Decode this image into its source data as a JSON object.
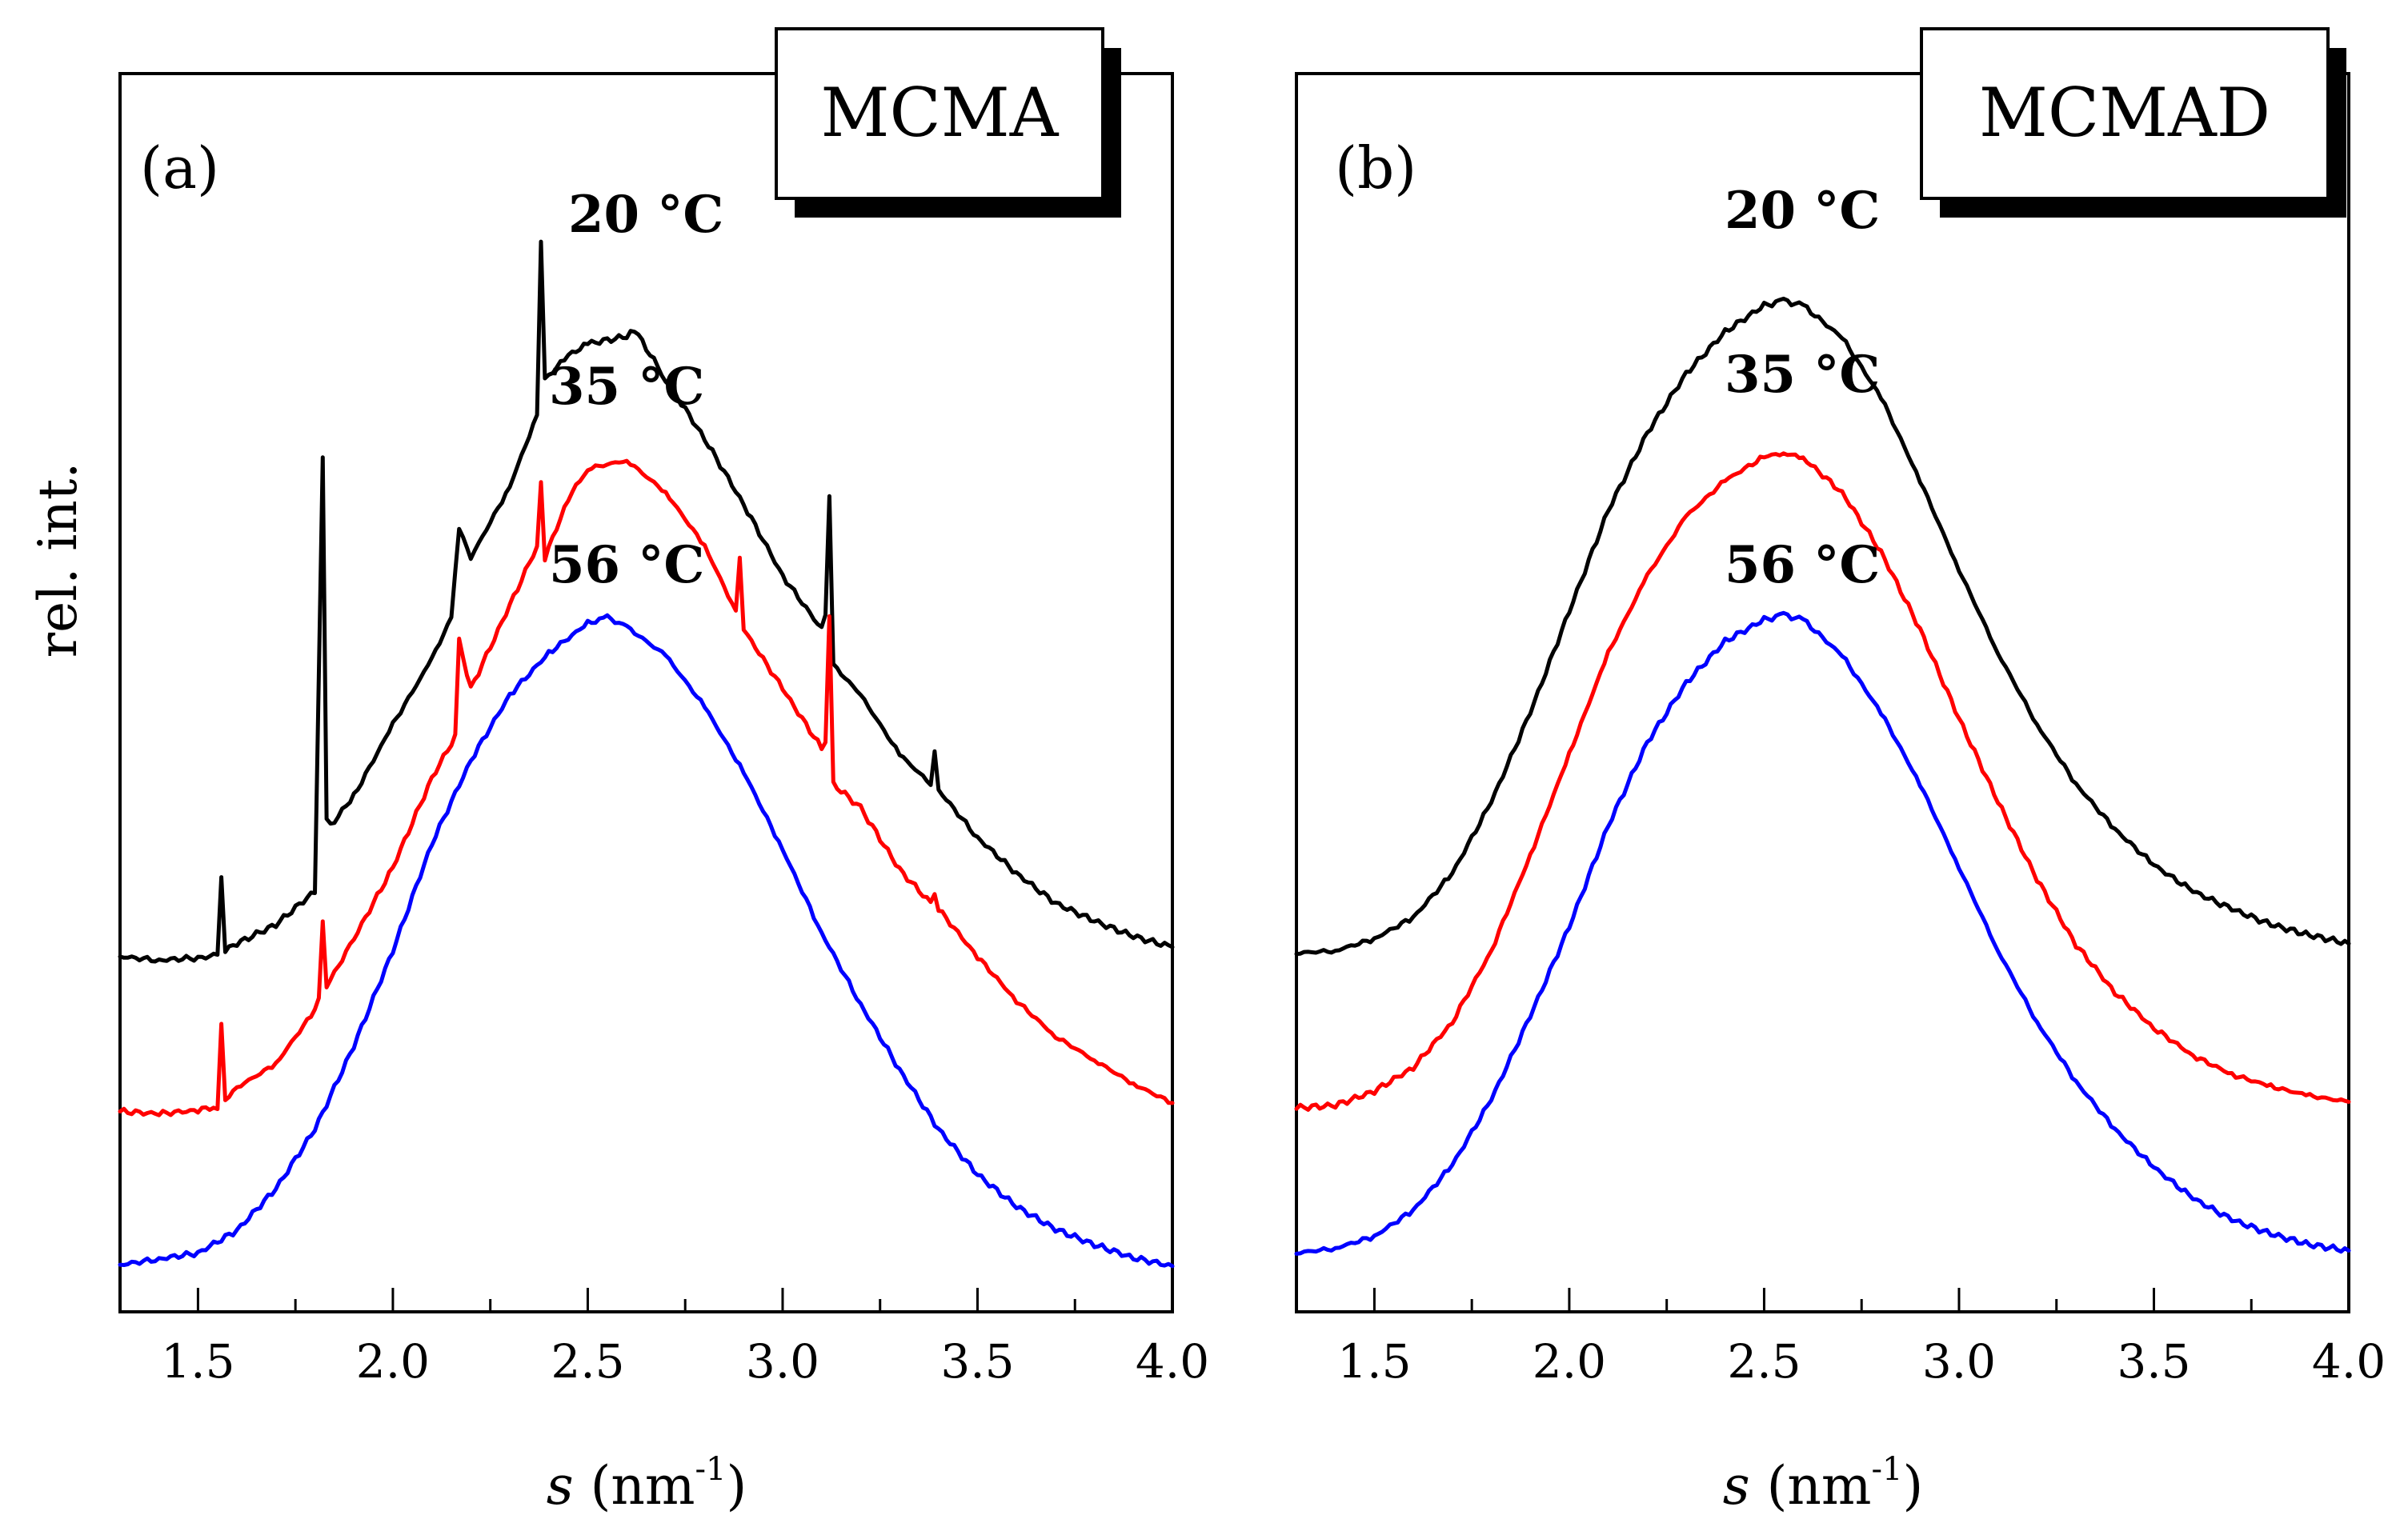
{
  "figure": {
    "ylabel": "rel. int.",
    "xlabel_var": "s",
    "xlabel_unit": " (nm",
    "xlabel_exp": "-1",
    "xlabel_close": ")"
  },
  "colors": {
    "t20": "#000000",
    "t35": "#ff0000",
    "t56": "#0000ff"
  },
  "chart_data": [
    {
      "type": "line",
      "panel_label": "(a)",
      "title": "MCMA",
      "xlabel": "s (nm-1)",
      "ylabel": "rel. int.",
      "xlim": [
        1.3,
        4.0
      ],
      "ylim": [
        0,
        100
      ],
      "x_ticks": [
        "1.5",
        "2.0",
        "2.5",
        "3.0",
        "3.5",
        "4.0"
      ],
      "series": [
        {
          "name": "20 °C",
          "color": "#000000",
          "x": [
            1.3,
            1.4,
            1.5,
            1.55,
            1.56,
            1.57,
            1.6,
            1.7,
            1.8,
            1.82,
            1.83,
            1.84,
            1.9,
            2.0,
            2.1,
            2.15,
            2.17,
            2.2,
            2.3,
            2.37,
            2.38,
            2.39,
            2.45,
            2.5,
            2.6,
            2.62,
            2.7,
            2.8,
            2.9,
            3.0,
            3.1,
            3.11,
            3.12,
            3.13,
            3.2,
            3.3,
            3.38,
            3.39,
            3.4,
            3.5,
            3.6,
            3.7,
            3.8,
            3.9,
            4.0
          ],
          "y": [
            28.5,
            28.2,
            28.4,
            28.6,
            35.2,
            29,
            29.6,
            31.2,
            34,
            70.5,
            40,
            39.5,
            42,
            48,
            53.5,
            57,
            64.5,
            62,
            68,
            74,
            88.5,
            77,
            79,
            80,
            80.6,
            81.2,
            77,
            72,
            66.5,
            60.5,
            56,
            57,
            67,
            53,
            50.5,
            45.5,
            43,
            45.8,
            42.5,
            38.5,
            35.5,
            33,
            31.5,
            30.2,
            29.3
          ]
        },
        {
          "name": "35 °C",
          "color": "#ff0000",
          "x": [
            1.3,
            1.4,
            1.5,
            1.55,
            1.56,
            1.57,
            1.6,
            1.7,
            1.8,
            1.81,
            1.82,
            1.83,
            1.9,
            2.0,
            2.1,
            2.16,
            2.17,
            2.2,
            2.3,
            2.37,
            2.38,
            2.39,
            2.45,
            2.5,
            2.6,
            2.7,
            2.8,
            2.88,
            2.89,
            2.9,
            3.0,
            3.1,
            3.11,
            3.12,
            3.13,
            3.2,
            3.3,
            3.38,
            3.39,
            3.4,
            3.5,
            3.6,
            3.7,
            3.8,
            3.9,
            4.0
          ],
          "y": [
            15.5,
            15.3,
            15.6,
            15.9,
            23,
            16.5,
            17.5,
            19.5,
            24,
            25,
            31.5,
            26,
            30,
            36,
            43.5,
            47,
            55,
            51,
            58,
            63,
            68.5,
            62,
            67,
            69.5,
            70.2,
            67.5,
            63,
            57.5,
            62,
            56,
            51,
            46,
            46.5,
            57,
            43,
            41,
            35.8,
            33,
            33.8,
            32.5,
            28.5,
            24.8,
            21.8,
            19.8,
            17.8,
            16.2
          ]
        },
        {
          "name": "56 °C",
          "color": "#0000ff",
          "x": [
            1.3,
            1.4,
            1.5,
            1.6,
            1.7,
            1.8,
            1.9,
            2.0,
            2.1,
            2.2,
            2.3,
            2.4,
            2.5,
            2.55,
            2.6,
            2.7,
            2.8,
            2.9,
            3.0,
            3.1,
            3.2,
            3.3,
            3.4,
            3.5,
            3.6,
            3.7,
            3.8,
            3.9,
            4.0
          ],
          "y": [
            2.6,
            3.1,
            3.6,
            5.5,
            9,
            14,
            21,
            29,
            38,
            45,
            50.5,
            54,
            56.5,
            57,
            56.2,
            53.8,
            49.5,
            44,
            37.5,
            30.5,
            24.5,
            19,
            14,
            10.2,
            7.5,
            5.6,
            4.3,
            3.2,
            2.5
          ]
        }
      ]
    },
    {
      "type": "line",
      "panel_label": "(b)",
      "title": "MCMAD",
      "xlabel": "s (nm-1)",
      "ylabel": "",
      "xlim": [
        1.3,
        4.0
      ],
      "ylim": [
        0,
        100
      ],
      "x_ticks": [
        "1.5",
        "2.0",
        "2.5",
        "3.0",
        "3.5",
        "4.0"
      ],
      "series": [
        {
          "name": "20 °C",
          "color": "#000000",
          "x": [
            1.3,
            1.4,
            1.5,
            1.6,
            1.7,
            1.8,
            1.9,
            2.0,
            2.1,
            2.2,
            2.3,
            2.4,
            2.5,
            2.55,
            2.6,
            2.7,
            2.8,
            2.9,
            3.0,
            3.1,
            3.2,
            3.3,
            3.4,
            3.5,
            3.6,
            3.7,
            3.8,
            3.9,
            4.0
          ],
          "y": [
            28.8,
            29,
            30,
            31.8,
            35.5,
            41.5,
            49,
            57.5,
            66,
            72.5,
            77.5,
            81,
            83.2,
            83.6,
            83.2,
            80.5,
            75.5,
            68.5,
            61,
            54,
            48,
            43,
            39.2,
            36.2,
            34,
            32.5,
            31.2,
            30.3,
            29.6
          ]
        },
        {
          "name": "35 °C",
          "color": "#ff0000",
          "x": [
            1.3,
            1.4,
            1.5,
            1.6,
            1.7,
            1.8,
            1.9,
            2.0,
            2.1,
            2.2,
            2.3,
            2.4,
            2.5,
            2.55,
            2.6,
            2.7,
            2.8,
            2.9,
            3.0,
            3.1,
            3.2,
            3.3,
            3.4,
            3.5,
            3.6,
            3.7,
            3.8,
            3.9,
            4.0
          ],
          "y": [
            15.8,
            16,
            17.2,
            19.2,
            23,
            29,
            37,
            45.5,
            54,
            60.5,
            65.5,
            68.5,
            70.5,
            70.8,
            70.4,
            67.5,
            62.5,
            56,
            48.5,
            41.5,
            35,
            29.5,
            25.5,
            22.5,
            20.2,
            18.6,
            17.6,
            16.8,
            16.3
          ]
        },
        {
          "name": "56 °C",
          "color": "#0000ff",
          "x": [
            1.3,
            1.4,
            1.5,
            1.6,
            1.7,
            1.8,
            1.9,
            2.0,
            2.1,
            2.2,
            2.3,
            2.4,
            2.5,
            2.55,
            2.6,
            2.7,
            2.8,
            2.9,
            3.0,
            3.1,
            3.2,
            3.3,
            3.4,
            3.5,
            3.6,
            3.7,
            3.8,
            3.9,
            4.0
          ],
          "y": [
            3.6,
            4,
            5,
            7.2,
            11,
            16.5,
            23.5,
            31,
            39.5,
            46.5,
            51.5,
            55,
            56.8,
            57.2,
            56.8,
            53.8,
            49,
            43,
            36,
            29,
            23,
            18,
            14,
            10.8,
            8.2,
            6.4,
            5.2,
            4.3,
            3.8
          ]
        }
      ]
    }
  ]
}
